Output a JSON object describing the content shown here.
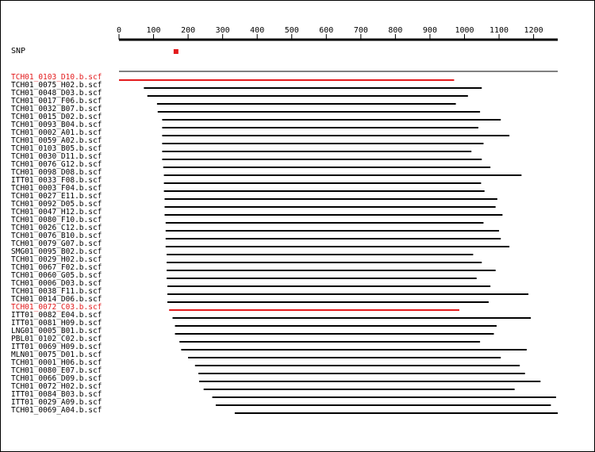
{
  "snp": {
    "label": "SNP",
    "position": 165
  },
  "axis": {
    "min": 0,
    "max": 1270,
    "ticks": [
      0,
      100,
      200,
      300,
      400,
      500,
      600,
      700,
      800,
      900,
      1000,
      1100,
      1200
    ]
  },
  "colors": {
    "highlight": "#e31a1c",
    "normal": "#000000"
  },
  "reads": [
    {
      "name": "TCH01_0103_D10.b.scf",
      "start": 0,
      "end": 970,
      "highlight": true
    },
    {
      "name": "TCH01_0075_H02.b.scf",
      "start": 72,
      "end": 1050
    },
    {
      "name": "TCH01_0048_D03.b.scf",
      "start": 82,
      "end": 1010
    },
    {
      "name": "TCH01_0017_F06.b.scf",
      "start": 110,
      "end": 975
    },
    {
      "name": "TCH01_0032_B07.b.scf",
      "start": 112,
      "end": 1045
    },
    {
      "name": "TCH01_0015_D02.b.scf",
      "start": 125,
      "end": 1105
    },
    {
      "name": "TCH01_0093_B04.b.scf",
      "start": 125,
      "end": 1040
    },
    {
      "name": "TCH01_0002_A01.b.scf",
      "start": 125,
      "end": 1130
    },
    {
      "name": "TCH01_0059_A02.b.scf",
      "start": 125,
      "end": 1055
    },
    {
      "name": "TCH01_0103_B05.b.scf",
      "start": 125,
      "end": 1020
    },
    {
      "name": "TCH01_0030_D11.b.scf",
      "start": 125,
      "end": 1050
    },
    {
      "name": "TCH01_0076_G12.b.scf",
      "start": 128,
      "end": 1075
    },
    {
      "name": "TCH01_0098_D08.b.scf",
      "start": 130,
      "end": 1165
    },
    {
      "name": "ITT01_0033_F08.b.scf",
      "start": 130,
      "end": 1048
    },
    {
      "name": "TCH01_0003_F04.b.scf",
      "start": 130,
      "end": 1058
    },
    {
      "name": "TCH01_0027_E11.b.scf",
      "start": 132,
      "end": 1095
    },
    {
      "name": "TCH01_0092_D05.b.scf",
      "start": 132,
      "end": 1090
    },
    {
      "name": "TCH01_0047_H12.b.scf",
      "start": 132,
      "end": 1110
    },
    {
      "name": "TCH01_0080_F10.b.scf",
      "start": 135,
      "end": 1055
    },
    {
      "name": "TCH01_0026_C12.b.scf",
      "start": 135,
      "end": 1100
    },
    {
      "name": "TCH01_0076_B10.b.scf",
      "start": 135,
      "end": 1105
    },
    {
      "name": "TCH01_0079_G07.b.scf",
      "start": 135,
      "end": 1130
    },
    {
      "name": "SMG01_0095_B02.b.scf",
      "start": 138,
      "end": 1025
    },
    {
      "name": "TCH01_0029_H02.b.scf",
      "start": 138,
      "end": 1050
    },
    {
      "name": "TCH01_0067_F02.b.scf",
      "start": 138,
      "end": 1090
    },
    {
      "name": "TCH01_0060_G05.b.scf",
      "start": 138,
      "end": 1035
    },
    {
      "name": "TCH01_0006_D03.b.scf",
      "start": 140,
      "end": 1075
    },
    {
      "name": "TCH01_0038_F11.b.scf",
      "start": 140,
      "end": 1185
    },
    {
      "name": "TCH01_0014_D06.b.scf",
      "start": 140,
      "end": 1070
    },
    {
      "name": "TCH01_0072_C03.b.scf",
      "start": 145,
      "end": 985,
      "highlight": true
    },
    {
      "name": "ITT01_0082_E04.b.scf",
      "start": 155,
      "end": 1192
    },
    {
      "name": "ITT01_0081_H09.b.scf",
      "start": 162,
      "end": 1093
    },
    {
      "name": "LNG01_0005_B01.b.scf",
      "start": 162,
      "end": 1085
    },
    {
      "name": "PBL01_0102_C02.b.scf",
      "start": 175,
      "end": 1045
    },
    {
      "name": "ITT01_0069_H09.b.scf",
      "start": 180,
      "end": 1180
    },
    {
      "name": "MLN01_0075_D01.b.scf",
      "start": 200,
      "end": 1105
    },
    {
      "name": "TCH01_0001_H06.b.scf",
      "start": 220,
      "end": 1160
    },
    {
      "name": "TCH01_0080_E07.b.scf",
      "start": 230,
      "end": 1175
    },
    {
      "name": "TCH01_0066_D09.b.scf",
      "start": 232,
      "end": 1220
    },
    {
      "name": "TCH01_0072_H02.b.scf",
      "start": 245,
      "end": 1145
    },
    {
      "name": "ITT01_0084_B03.b.scf",
      "start": 270,
      "end": 1265
    },
    {
      "name": "ITT01_0029_A09.b.scf",
      "start": 280,
      "end": 1250
    },
    {
      "name": "TCH01_0069_A04.b.scf",
      "start": 335,
      "end": 1270
    }
  ]
}
